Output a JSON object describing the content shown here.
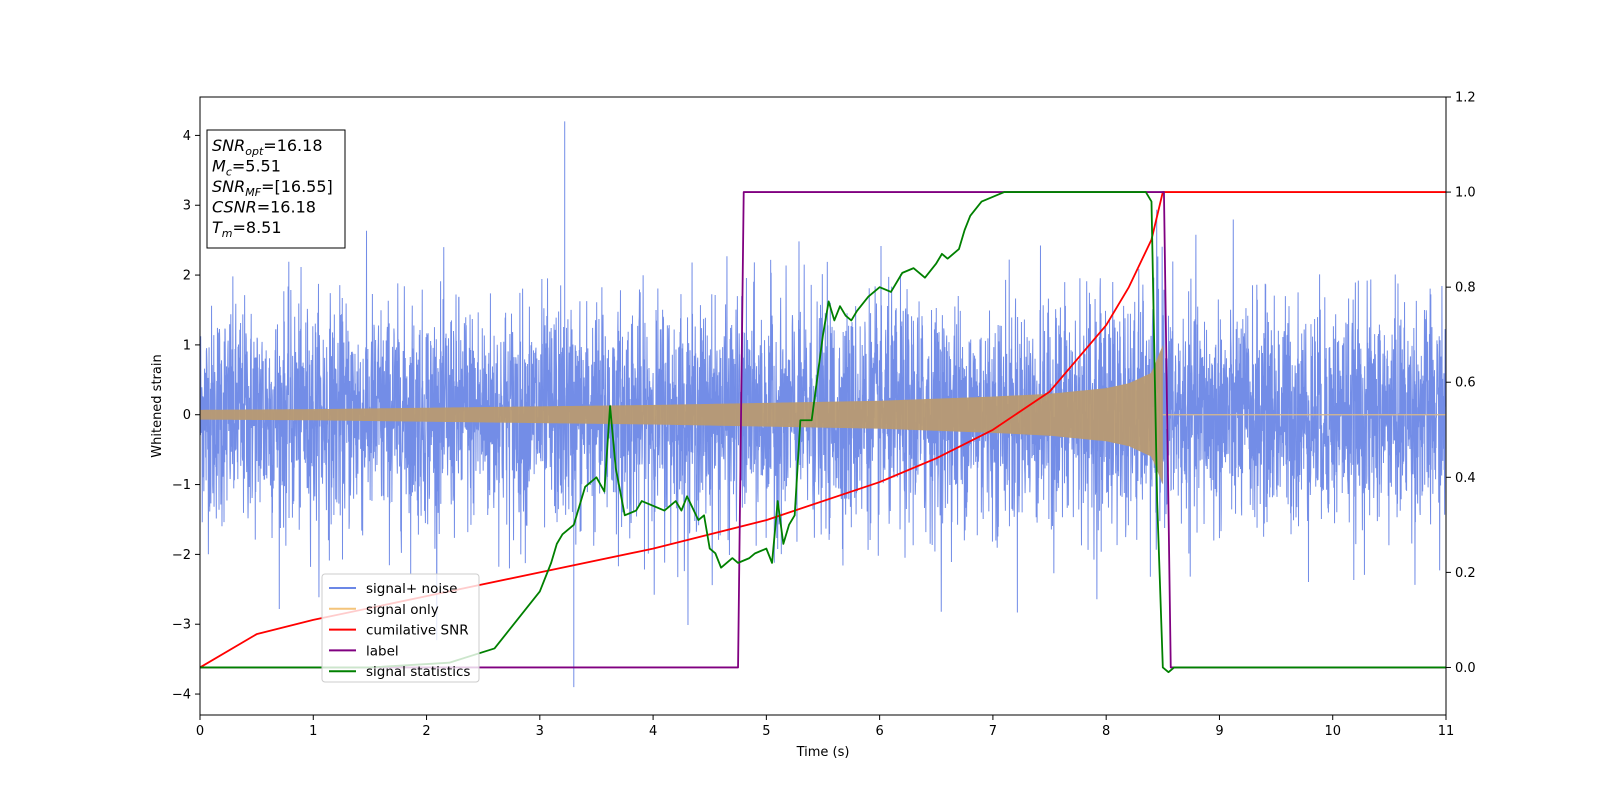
{
  "chart_data": {
    "type": "line",
    "title": "",
    "xlabel": "Time (s)",
    "ylabel": "Whitened strain",
    "y2label": "",
    "xlim": [
      0,
      11
    ],
    "ylim": [
      -4.3,
      4.55
    ],
    "y2lim": [
      -0.1,
      1.2
    ],
    "x_ticks": [
      "0",
      "1",
      "2",
      "3",
      "4",
      "5",
      "6",
      "7",
      "8",
      "9",
      "10",
      "11"
    ],
    "y_ticks": [
      {
        "value": 4,
        "label": "4"
      },
      {
        "value": 3,
        "label": "3"
      },
      {
        "value": 2,
        "label": "2"
      },
      {
        "value": 1,
        "label": "1"
      },
      {
        "value": 0,
        "label": "0"
      },
      {
        "value": -1,
        "label": "−1"
      },
      {
        "value": -2,
        "label": "−2"
      },
      {
        "value": -3,
        "label": "−3"
      },
      {
        "value": -4,
        "label": "−4"
      }
    ],
    "y2_ticks": [
      {
        "value": 1.2,
        "label": "1.2"
      },
      {
        "value": 1.0,
        "label": "1.0"
      },
      {
        "value": 0.8,
        "label": "0.8"
      },
      {
        "value": 0.6,
        "label": "0.6"
      },
      {
        "value": 0.4,
        "label": "0.4"
      },
      {
        "value": 0.2,
        "label": "0.2"
      },
      {
        "value": 0.0,
        "label": "0.0"
      }
    ],
    "grid": false,
    "legend_position": "lower-left",
    "series": [
      {
        "name": "signal+ noise",
        "axis": "left",
        "color": "#6b87e6",
        "description_stats": {
          "typical_abs_peak": 2.3,
          "max": 4.2,
          "min": -3.9,
          "x_max": 3.22,
          "x_min": 3.3
        }
      },
      {
        "name": "signal only",
        "axis": "left",
        "color": "#f4c47a",
        "envelope": {
          "x": [
            0,
            1,
            2,
            3,
            4,
            5,
            6,
            7,
            7.5,
            8,
            8.2,
            8.4,
            8.5
          ],
          "amp": [
            0.07,
            0.08,
            0.1,
            0.12,
            0.14,
            0.17,
            0.2,
            0.26,
            0.3,
            0.38,
            0.45,
            0.6,
            1.0
          ]
        }
      },
      {
        "name": "cumilative SNR",
        "axis": "right",
        "color": "#ff0000",
        "x": [
          0,
          0.5,
          1,
          2,
          3,
          4,
          5,
          6,
          6.5,
          7,
          7.5,
          8,
          8.2,
          8.4,
          8.5,
          11
        ],
        "y": [
          0,
          0.07,
          0.1,
          0.15,
          0.2,
          0.25,
          0.31,
          0.39,
          0.44,
          0.5,
          0.58,
          0.72,
          0.8,
          0.9,
          1.0,
          1.0
        ]
      },
      {
        "name": "label",
        "axis": "right",
        "color": "#800080",
        "x": [
          0,
          4.75,
          4.8,
          8.51,
          8.57,
          11
        ],
        "y": [
          0,
          0,
          1,
          1,
          0,
          0
        ]
      },
      {
        "name": "signal statistics",
        "axis": "right",
        "color": "#008000",
        "x": [
          0,
          1.5,
          2.2,
          2.6,
          2.7,
          2.8,
          2.9,
          3.0,
          3.1,
          3.15,
          3.2,
          3.3,
          3.35,
          3.4,
          3.5,
          3.57,
          3.62,
          3.67,
          3.75,
          3.85,
          3.9,
          4.0,
          4.1,
          4.2,
          4.25,
          4.3,
          4.4,
          4.45,
          4.5,
          4.55,
          4.6,
          4.7,
          4.75,
          4.85,
          4.9,
          5.0,
          5.05,
          5.1,
          5.15,
          5.2,
          5.25,
          5.3,
          5.35,
          5.4,
          5.5,
          5.55,
          5.6,
          5.65,
          5.7,
          5.75,
          5.8,
          5.9,
          6.0,
          6.1,
          6.2,
          6.3,
          6.4,
          6.5,
          6.55,
          6.6,
          6.7,
          6.75,
          6.8,
          6.9,
          7.0,
          7.1,
          7.2,
          7.4,
          7.6,
          7.8,
          8.0,
          8.2,
          8.35,
          8.4,
          8.45,
          8.5,
          8.55,
          8.6,
          11
        ],
        "y": [
          0,
          0.0,
          0.01,
          0.04,
          0.07,
          0.1,
          0.13,
          0.16,
          0.22,
          0.26,
          0.28,
          0.3,
          0.34,
          0.38,
          0.4,
          0.37,
          0.55,
          0.42,
          0.32,
          0.33,
          0.35,
          0.34,
          0.33,
          0.35,
          0.33,
          0.36,
          0.31,
          0.32,
          0.25,
          0.24,
          0.21,
          0.23,
          0.22,
          0.23,
          0.24,
          0.25,
          0.22,
          0.35,
          0.26,
          0.3,
          0.32,
          0.52,
          0.52,
          0.52,
          0.7,
          0.77,
          0.73,
          0.76,
          0.74,
          0.73,
          0.75,
          0.78,
          0.8,
          0.79,
          0.83,
          0.84,
          0.82,
          0.85,
          0.87,
          0.86,
          0.88,
          0.92,
          0.95,
          0.98,
          0.99,
          1.0,
          1.0,
          1.0,
          1.0,
          1.0,
          1.0,
          1.0,
          1.0,
          0.98,
          0.35,
          0.0,
          -0.01,
          0.0,
          0.0
        ]
      }
    ],
    "annotation_lines": [
      {
        "key": "snr_opt",
        "base": "SNR",
        "sub": "opt",
        "value": "=16.18"
      },
      {
        "key": "mc",
        "base": "M",
        "sub": "c",
        "value": "=5.51"
      },
      {
        "key": "snr_mf",
        "base": "SNR",
        "sub": "MF",
        "value": "=[16.55]"
      },
      {
        "key": "csnr",
        "base": "CSNR",
        "sub": "",
        "value": "=16.18"
      },
      {
        "key": "tm",
        "base": "T",
        "sub": "m",
        "value": "=8.51"
      }
    ]
  }
}
